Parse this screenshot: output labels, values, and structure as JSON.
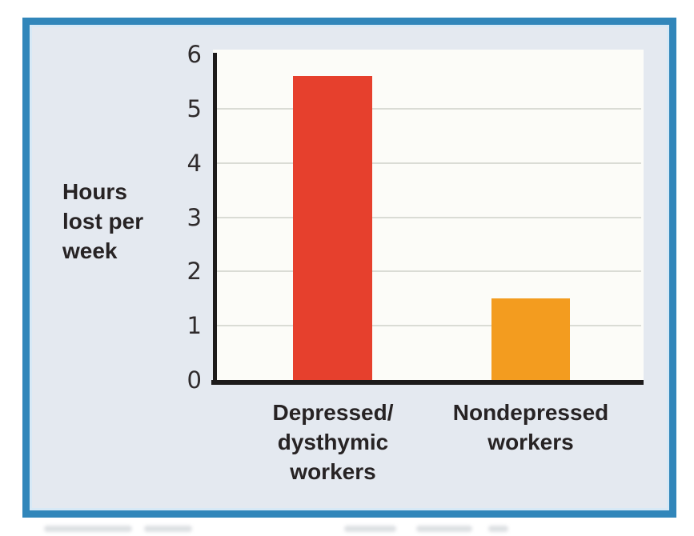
{
  "frame": {
    "border_color": "#3186ba",
    "background_color": "#e4e9f0",
    "inner_highlight_color": "#d6e9f5"
  },
  "chart_data": {
    "type": "bar",
    "title": "",
    "categories": [
      "Depressed/dysthymic workers",
      "Nondepressed workers"
    ],
    "categories_lines": [
      [
        "Depressed/",
        "dysthymic",
        "workers"
      ],
      [
        "Nondepressed",
        "workers"
      ]
    ],
    "values": [
      5.6,
      1.5
    ],
    "bar_colors": [
      "#e6402d",
      "#f39c1f"
    ],
    "ylabel": "Hours lost per week",
    "ylabel_lines": [
      "Hours",
      "lost per",
      "week"
    ],
    "xlabel": "",
    "ylim": [
      0,
      6
    ],
    "yticks": [
      0,
      1,
      2,
      3,
      4,
      5,
      6
    ],
    "grid": true,
    "legend": false,
    "plot_background": "#fcfcf8",
    "gridline_color": "#dadcd5",
    "axis_color": "#1d1b1b",
    "tick_text_color": "#2f2b2c",
    "label_text_color": "#272324"
  }
}
